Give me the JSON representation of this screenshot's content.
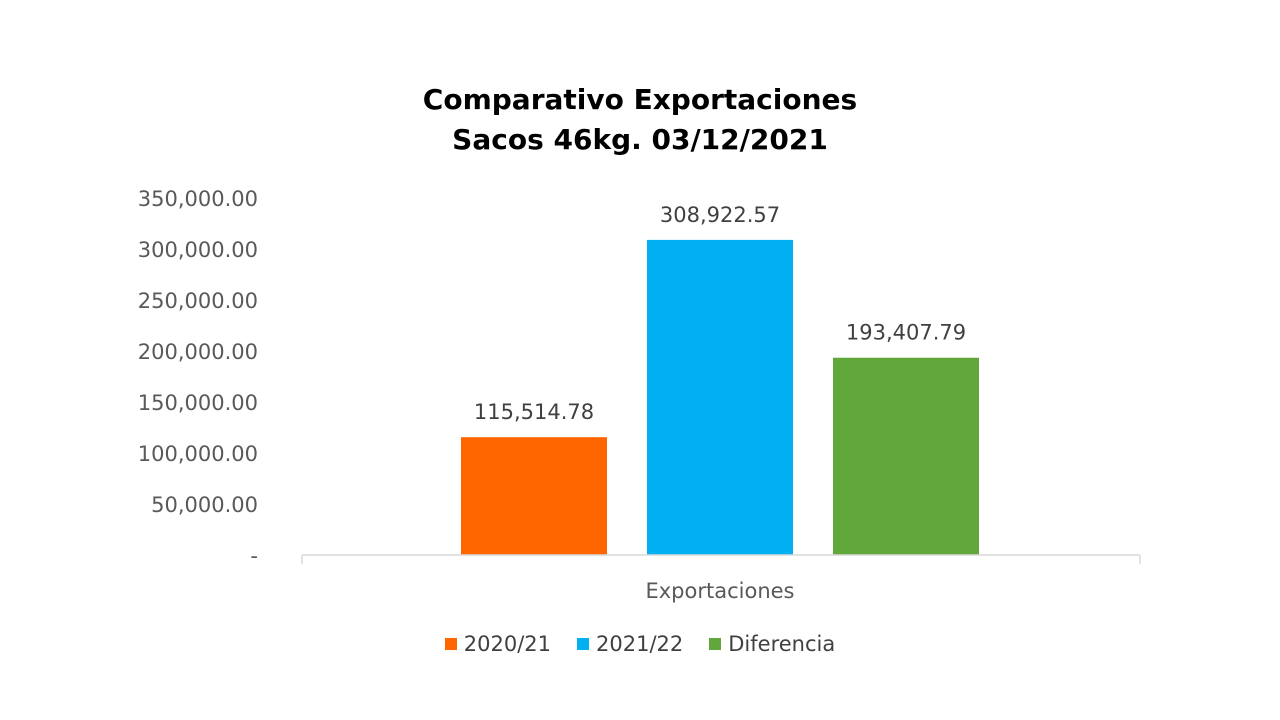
{
  "chart_data": {
    "type": "bar",
    "title_lines": [
      "Comparativo  Exportaciones",
      "Sacos 46kg. 03/12/2021"
    ],
    "categories": [
      "Exportaciones"
    ],
    "series": [
      {
        "name": "2020/21",
        "values": [
          115514.78
        ],
        "color": "#FF6600",
        "label": "115,514.78"
      },
      {
        "name": "2021/22",
        "values": [
          308922.57
        ],
        "color": "#00B0F0",
        "label": "308,922.57"
      },
      {
        "name": "Diferencia",
        "values": [
          193407.79
        ],
        "color": "#62A73B",
        "label": "193,407.79"
      }
    ],
    "ylim": [
      0,
      350000
    ],
    "y_ticks": [
      {
        "value": 350000,
        "label": "350,000.00"
      },
      {
        "value": 300000,
        "label": "300,000.00"
      },
      {
        "value": 250000,
        "label": "250,000.00"
      },
      {
        "value": 200000,
        "label": "200,000.00"
      },
      {
        "value": 150000,
        "label": "150,000.00"
      },
      {
        "value": 100000,
        "label": "100,000.00"
      },
      {
        "value": 50000,
        "label": "50,000.00"
      },
      {
        "value": 0,
        "label": "-"
      }
    ],
    "grid": false,
    "legend_position": "bottom"
  }
}
